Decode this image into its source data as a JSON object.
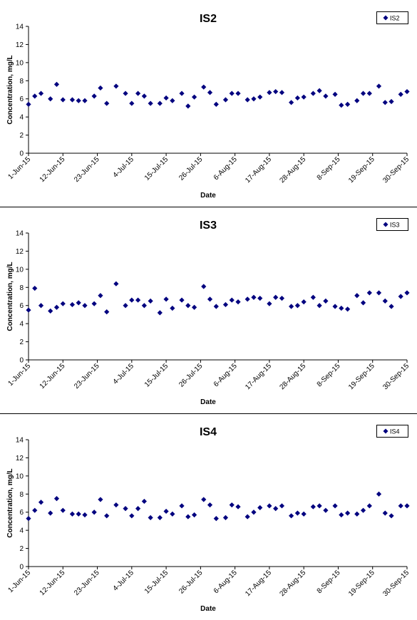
{
  "chart_data": [
    {
      "type": "scatter",
      "title": "IS2",
      "xlabel": "Date",
      "ylabel": "Concentration, mg/L",
      "ylim": [
        0,
        14
      ],
      "yticks": [
        "0",
        "2",
        "4",
        "6",
        "8",
        "10",
        "12",
        "14"
      ],
      "xlim": [
        "2015-06-01",
        "2015-09-30"
      ],
      "xticks": [
        "1-Jun-15",
        "12-Jun-15",
        "23-Jun-15",
        "4-Jul-15",
        "15-Jul-15",
        "26-Jul-15",
        "6-Aug-15",
        "17-Aug-15",
        "28-Aug-15",
        "8-Sep-15",
        "19-Sep-15",
        "30-Sep-15"
      ],
      "legend_position": "top-right",
      "grid": false,
      "marker_color": "#00007f",
      "series": [
        {
          "name": "IS2",
          "points": [
            [
              "2015-06-01",
              5.4
            ],
            [
              "2015-06-03",
              6.3
            ],
            [
              "2015-06-05",
              6.6
            ],
            [
              "2015-06-08",
              6.0
            ],
            [
              "2015-06-10",
              7.6
            ],
            [
              "2015-06-12",
              5.9
            ],
            [
              "2015-06-15",
              5.9
            ],
            [
              "2015-06-17",
              5.8
            ],
            [
              "2015-06-19",
              5.8
            ],
            [
              "2015-06-22",
              6.3
            ],
            [
              "2015-06-24",
              7.2
            ],
            [
              "2015-06-26",
              5.5
            ],
            [
              "2015-06-29",
              7.4
            ],
            [
              "2015-07-02",
              6.6
            ],
            [
              "2015-07-04",
              5.5
            ],
            [
              "2015-07-06",
              6.6
            ],
            [
              "2015-07-08",
              6.3
            ],
            [
              "2015-07-10",
              5.5
            ],
            [
              "2015-07-13",
              5.5
            ],
            [
              "2015-07-15",
              6.1
            ],
            [
              "2015-07-17",
              5.8
            ],
            [
              "2015-07-20",
              6.6
            ],
            [
              "2015-07-22",
              5.2
            ],
            [
              "2015-07-24",
              6.2
            ],
            [
              "2015-07-27",
              7.3
            ],
            [
              "2015-07-29",
              6.7
            ],
            [
              "2015-07-31",
              5.4
            ],
            [
              "2015-08-03",
              5.9
            ],
            [
              "2015-08-05",
              6.6
            ],
            [
              "2015-08-07",
              6.6
            ],
            [
              "2015-08-10",
              5.9
            ],
            [
              "2015-08-12",
              6.0
            ],
            [
              "2015-08-14",
              6.2
            ],
            [
              "2015-08-17",
              6.7
            ],
            [
              "2015-08-19",
              6.8
            ],
            [
              "2015-08-21",
              6.7
            ],
            [
              "2015-08-24",
              5.6
            ],
            [
              "2015-08-26",
              6.1
            ],
            [
              "2015-08-28",
              6.2
            ],
            [
              "2015-08-31",
              6.6
            ],
            [
              "2015-09-02",
              6.9
            ],
            [
              "2015-09-04",
              6.3
            ],
            [
              "2015-09-07",
              6.5
            ],
            [
              "2015-09-09",
              5.3
            ],
            [
              "2015-09-11",
              5.4
            ],
            [
              "2015-09-14",
              5.8
            ],
            [
              "2015-09-16",
              6.6
            ],
            [
              "2015-09-18",
              6.6
            ],
            [
              "2015-09-21",
              7.4
            ],
            [
              "2015-09-23",
              5.6
            ],
            [
              "2015-09-25",
              5.7
            ],
            [
              "2015-09-28",
              6.5
            ],
            [
              "2015-09-30",
              6.8
            ]
          ]
        }
      ]
    },
    {
      "type": "scatter",
      "title": "IS3",
      "xlabel": "Date",
      "ylabel": "Concentration, mg/L",
      "ylim": [
        0,
        14
      ],
      "yticks": [
        "0",
        "2",
        "4",
        "6",
        "8",
        "10",
        "12",
        "14"
      ],
      "xlim": [
        "2015-06-01",
        "2015-09-30"
      ],
      "xticks": [
        "1-Jun-15",
        "12-Jun-15",
        "23-Jun-15",
        "4-Jul-15",
        "15-Jul-15",
        "26-Jul-15",
        "6-Aug-15",
        "17-Aug-15",
        "28-Aug-15",
        "8-Sep-15",
        "19-Sep-15",
        "30-Sep-15"
      ],
      "legend_position": "top-right",
      "grid": false,
      "marker_color": "#00007f",
      "series": [
        {
          "name": "IS3",
          "points": [
            [
              "2015-06-01",
              5.5
            ],
            [
              "2015-06-03",
              7.9
            ],
            [
              "2015-06-05",
              6.0
            ],
            [
              "2015-06-08",
              5.4
            ],
            [
              "2015-06-10",
              5.8
            ],
            [
              "2015-06-12",
              6.2
            ],
            [
              "2015-06-15",
              6.1
            ],
            [
              "2015-06-17",
              6.3
            ],
            [
              "2015-06-19",
              6.0
            ],
            [
              "2015-06-22",
              6.2
            ],
            [
              "2015-06-24",
              7.1
            ],
            [
              "2015-06-26",
              5.3
            ],
            [
              "2015-06-29",
              8.4
            ],
            [
              "2015-07-02",
              6.0
            ],
            [
              "2015-07-04",
              6.6
            ],
            [
              "2015-07-06",
              6.6
            ],
            [
              "2015-07-08",
              6.0
            ],
            [
              "2015-07-10",
              6.5
            ],
            [
              "2015-07-13",
              5.2
            ],
            [
              "2015-07-15",
              6.7
            ],
            [
              "2015-07-17",
              5.7
            ],
            [
              "2015-07-20",
              6.6
            ],
            [
              "2015-07-22",
              6.0
            ],
            [
              "2015-07-24",
              5.8
            ],
            [
              "2015-07-27",
              8.1
            ],
            [
              "2015-07-29",
              6.7
            ],
            [
              "2015-07-31",
              5.9
            ],
            [
              "2015-08-03",
              6.1
            ],
            [
              "2015-08-05",
              6.6
            ],
            [
              "2015-08-07",
              6.4
            ],
            [
              "2015-08-10",
              6.7
            ],
            [
              "2015-08-12",
              6.9
            ],
            [
              "2015-08-14",
              6.8
            ],
            [
              "2015-08-17",
              6.2
            ],
            [
              "2015-08-19",
              6.9
            ],
            [
              "2015-08-21",
              6.8
            ],
            [
              "2015-08-24",
              5.9
            ],
            [
              "2015-08-26",
              6.0
            ],
            [
              "2015-08-28",
              6.4
            ],
            [
              "2015-08-31",
              6.9
            ],
            [
              "2015-09-02",
              6.0
            ],
            [
              "2015-09-04",
              6.5
            ],
            [
              "2015-09-07",
              5.9
            ],
            [
              "2015-09-09",
              5.7
            ],
            [
              "2015-09-11",
              5.6
            ],
            [
              "2015-09-14",
              7.1
            ],
            [
              "2015-09-16",
              6.3
            ],
            [
              "2015-09-18",
              7.4
            ],
            [
              "2015-09-21",
              7.4
            ],
            [
              "2015-09-23",
              6.5
            ],
            [
              "2015-09-25",
              5.9
            ],
            [
              "2015-09-28",
              7.0
            ],
            [
              "2015-09-30",
              7.4
            ]
          ]
        }
      ]
    },
    {
      "type": "scatter",
      "title": "IS4",
      "xlabel": "Date",
      "ylabel": "Concentration, mg/L",
      "ylim": [
        0,
        14
      ],
      "yticks": [
        "0",
        "2",
        "4",
        "6",
        "8",
        "10",
        "12",
        "14"
      ],
      "xlim": [
        "2015-06-01",
        "2015-09-30"
      ],
      "xticks": [
        "1-Jun-15",
        "12-Jun-15",
        "23-Jun-15",
        "4-Jul-15",
        "15-Jul-15",
        "26-Jul-15",
        "6-Aug-15",
        "17-Aug-15",
        "28-Aug-15",
        "8-Sep-15",
        "19-Sep-15",
        "30-Sep-15"
      ],
      "legend_position": "top-right",
      "grid": false,
      "marker_color": "#00007f",
      "series": [
        {
          "name": "IS4",
          "points": [
            [
              "2015-06-01",
              5.3
            ],
            [
              "2015-06-03",
              6.2
            ],
            [
              "2015-06-05",
              7.1
            ],
            [
              "2015-06-08",
              5.9
            ],
            [
              "2015-06-10",
              7.5
            ],
            [
              "2015-06-12",
              6.2
            ],
            [
              "2015-06-15",
              5.8
            ],
            [
              "2015-06-17",
              5.8
            ],
            [
              "2015-06-19",
              5.7
            ],
            [
              "2015-06-22",
              6.0
            ],
            [
              "2015-06-24",
              7.4
            ],
            [
              "2015-06-26",
              5.6
            ],
            [
              "2015-06-29",
              6.8
            ],
            [
              "2015-07-02",
              6.4
            ],
            [
              "2015-07-04",
              5.6
            ],
            [
              "2015-07-06",
              6.4
            ],
            [
              "2015-07-08",
              7.2
            ],
            [
              "2015-07-10",
              5.4
            ],
            [
              "2015-07-13",
              5.4
            ],
            [
              "2015-07-15",
              6.1
            ],
            [
              "2015-07-17",
              5.8
            ],
            [
              "2015-07-20",
              6.7
            ],
            [
              "2015-07-22",
              5.5
            ],
            [
              "2015-07-24",
              5.7
            ],
            [
              "2015-07-27",
              7.4
            ],
            [
              "2015-07-29",
              6.8
            ],
            [
              "2015-07-31",
              5.3
            ],
            [
              "2015-08-03",
              5.4
            ],
            [
              "2015-08-05",
              6.8
            ],
            [
              "2015-08-07",
              6.6
            ],
            [
              "2015-08-10",
              5.5
            ],
            [
              "2015-08-12",
              6.0
            ],
            [
              "2015-08-14",
              6.5
            ],
            [
              "2015-08-17",
              6.7
            ],
            [
              "2015-08-19",
              6.4
            ],
            [
              "2015-08-21",
              6.7
            ],
            [
              "2015-08-24",
              5.6
            ],
            [
              "2015-08-26",
              5.9
            ],
            [
              "2015-08-28",
              5.8
            ],
            [
              "2015-08-31",
              6.6
            ],
            [
              "2015-09-02",
              6.7
            ],
            [
              "2015-09-04",
              6.2
            ],
            [
              "2015-09-07",
              6.7
            ],
            [
              "2015-09-09",
              5.7
            ],
            [
              "2015-09-11",
              5.9
            ],
            [
              "2015-09-14",
              5.8
            ],
            [
              "2015-09-16",
              6.2
            ],
            [
              "2015-09-18",
              6.7
            ],
            [
              "2015-09-21",
              8.0
            ],
            [
              "2015-09-23",
              5.9
            ],
            [
              "2015-09-25",
              5.6
            ],
            [
              "2015-09-28",
              6.7
            ],
            [
              "2015-09-30",
              6.7
            ]
          ]
        }
      ]
    }
  ]
}
